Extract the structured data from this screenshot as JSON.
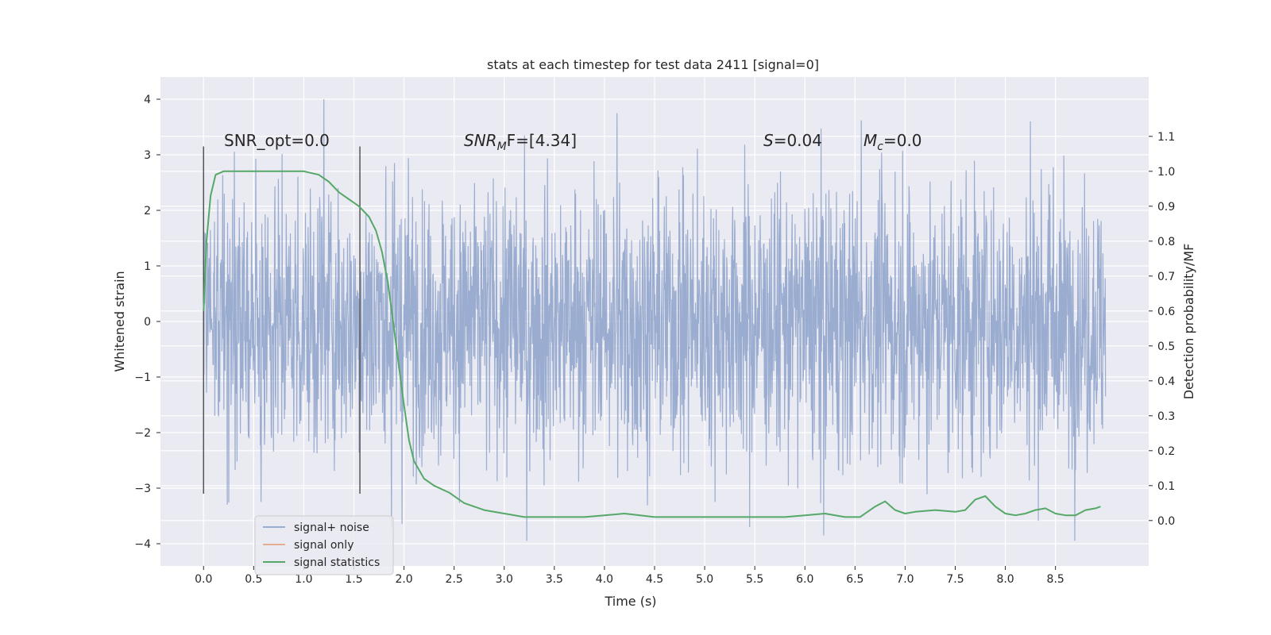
{
  "chart_data": {
    "type": "line",
    "title": "stats at each timestep for test data 2411 [signal=0]",
    "xlabel": "Time (s)",
    "ylabel": "Whitened strain",
    "ylabel_right": "Detection probability/MF",
    "xlim": [
      -0.43,
      9.43
    ],
    "ylim": [
      -4.4,
      4.4
    ],
    "ylim_right": [
      -0.13,
      1.27
    ],
    "x_ticks": [
      "0.0",
      "0.5",
      "1.0",
      "1.5",
      "2.0",
      "2.5",
      "3.0",
      "3.5",
      "4.0",
      "4.5",
      "5.0",
      "5.5",
      "6.0",
      "6.5",
      "7.0",
      "7.5",
      "8.0",
      "8.5"
    ],
    "y_ticks": [
      "4",
      "3",
      "2",
      "1",
      "0",
      "−1",
      "−2",
      "−3",
      "−4"
    ],
    "y_ticks_right": [
      "1.1",
      "1.0",
      "0.9",
      "0.8",
      "0.7",
      "0.6",
      "0.5",
      "0.4",
      "0.3",
      "0.2",
      "0.1",
      "0.0"
    ],
    "grid": true,
    "legend_placement": "lower-left",
    "colors": {
      "background": "#eaeaf2",
      "noise": "#9aaccf",
      "signal_only": "#dd8452",
      "statistics": "#55a868",
      "vline": "#555555"
    },
    "annotations": {
      "snr_opt": "SNR_opt=0.0",
      "snr_mf_main": "SNR",
      "snr_mf_sub": "M",
      "snr_mf_rest": "F=[4.34]",
      "s_main": "S",
      "s_rest": "=0.04",
      "mc_main": "M",
      "mc_sub": "c",
      "mc_rest": "=0.0"
    },
    "vlines_x": [
      0.0,
      1.56
    ],
    "series": [
      {
        "name": "signal+ noise",
        "x_range": [
          0.0,
          9.0
        ],
        "typical_amplitude": 1.3,
        "peak_values": [
          4.0,
          3.75,
          3.62,
          3.6,
          -3.95,
          -3.85,
          -3.72
        ]
      },
      {
        "name": "signal only",
        "values": []
      },
      {
        "name": "signal statistics",
        "x": [
          0.0,
          0.03,
          0.07,
          0.12,
          0.2,
          0.3,
          0.5,
          0.8,
          1.0,
          1.15,
          1.25,
          1.35,
          1.45,
          1.55,
          1.65,
          1.72,
          1.78,
          1.84,
          1.9,
          1.95,
          2.0,
          2.05,
          2.1,
          2.2,
          2.3,
          2.45,
          2.6,
          2.8,
          3.0,
          3.2,
          3.5,
          3.8,
          4.0,
          4.2,
          4.5,
          4.8,
          5.0,
          5.3,
          5.6,
          5.8,
          6.0,
          6.2,
          6.4,
          6.55,
          6.7,
          6.8,
          6.9,
          7.0,
          7.1,
          7.3,
          7.5,
          7.6,
          7.7,
          7.8,
          7.9,
          8.0,
          8.1,
          8.2,
          8.3,
          8.4,
          8.5,
          8.6,
          8.7,
          8.8,
          8.9,
          8.95
        ],
        "values": [
          0.6,
          0.8,
          0.93,
          0.99,
          1.0,
          1.0,
          1.0,
          1.0,
          1.0,
          0.99,
          0.97,
          0.94,
          0.92,
          0.9,
          0.87,
          0.83,
          0.77,
          0.68,
          0.55,
          0.44,
          0.33,
          0.23,
          0.17,
          0.12,
          0.1,
          0.08,
          0.05,
          0.03,
          0.02,
          0.01,
          0.01,
          0.01,
          0.015,
          0.02,
          0.01,
          0.01,
          0.01,
          0.01,
          0.01,
          0.01,
          0.015,
          0.02,
          0.01,
          0.01,
          0.04,
          0.055,
          0.03,
          0.02,
          0.025,
          0.03,
          0.025,
          0.03,
          0.06,
          0.07,
          0.04,
          0.02,
          0.015,
          0.02,
          0.03,
          0.035,
          0.02,
          0.015,
          0.015,
          0.03,
          0.035,
          0.04
        ]
      }
    ]
  }
}
